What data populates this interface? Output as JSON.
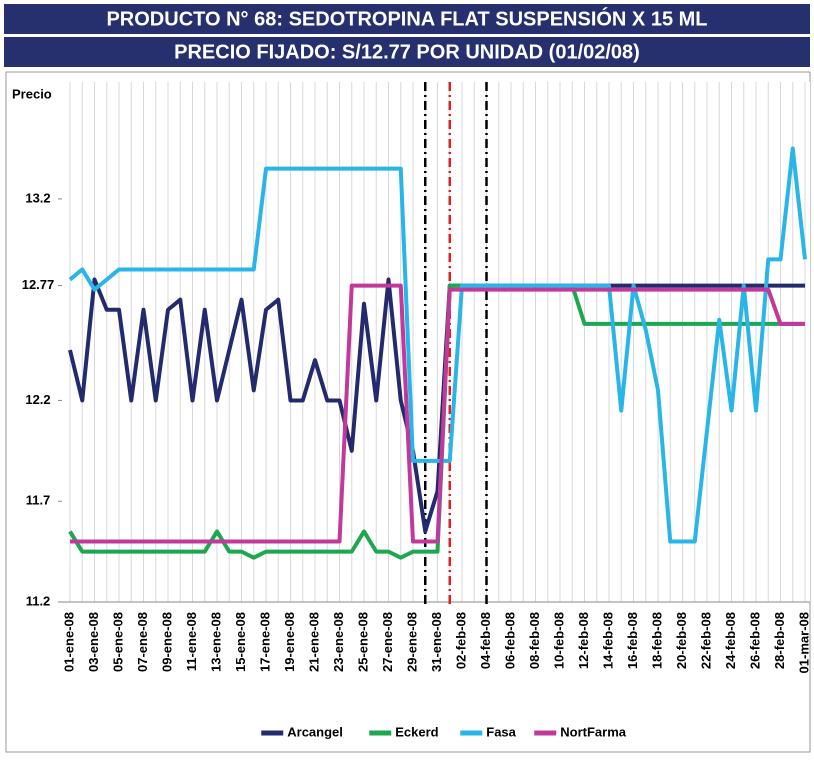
{
  "chart_data": {
    "type": "line",
    "title": "PRODUCTO N° 68: SEDOTROPINA FLAT SUSPENSIÓN X 15 ML",
    "subtitle": "PRECIO FIJADO: S/12.77 POR UNIDAD (01/02/08)",
    "y_label": "Precio",
    "categories": [
      "01-ene-08",
      null,
      "03-ene-08",
      null,
      "05-ene-08",
      null,
      "07-ene-08",
      null,
      "09-ene-08",
      null,
      "11-ene-08",
      null,
      "13-ene-08",
      null,
      "15-ene-08",
      null,
      "17-ene-08",
      null,
      "19-ene-08",
      null,
      "21-ene-08",
      null,
      "23-ene-08",
      null,
      "25-ene-08",
      null,
      "27-ene-08",
      null,
      "29-ene-08",
      null,
      "31-ene-08",
      null,
      "02-feb-08",
      null,
      "04-feb-08",
      null,
      "06-feb-08",
      null,
      "08-feb-08",
      null,
      "10-feb-08",
      null,
      "12-feb-08",
      null,
      "14-feb-08",
      null,
      "16-feb-08",
      null,
      "18-feb-08",
      null,
      "20-feb-08",
      null,
      "22-feb-08",
      null,
      "24-feb-08",
      null,
      "26-feb-08",
      null,
      "28-feb-08",
      null,
      "01-mar-08"
    ],
    "series": [
      {
        "name": "Arcangel",
        "color": "#232b6e",
        "values": [
          12.45,
          12.2,
          12.8,
          12.65,
          12.65,
          12.2,
          12.65,
          12.2,
          12.65,
          12.7,
          12.2,
          12.65,
          12.2,
          12.45,
          12.7,
          12.25,
          12.65,
          12.7,
          12.2,
          12.2,
          12.4,
          12.2,
          12.2,
          11.95,
          12.68,
          12.2,
          12.8,
          12.2,
          11.95,
          11.55,
          11.75,
          12.77,
          12.77,
          12.77,
          12.77,
          12.77,
          12.77,
          12.77,
          12.77,
          12.77,
          12.77,
          12.77,
          12.77,
          12.77,
          12.77,
          12.77,
          12.77,
          12.77,
          12.77,
          12.77,
          12.77,
          12.77,
          12.77,
          12.77,
          12.77,
          12.77,
          12.77,
          12.77,
          12.77,
          12.77,
          12.77
        ]
      },
      {
        "name": "Eckerd",
        "color": "#1fa650",
        "values": [
          11.55,
          11.45,
          11.45,
          11.45,
          11.45,
          11.45,
          11.45,
          11.45,
          11.45,
          11.45,
          11.45,
          11.45,
          11.55,
          11.45,
          11.45,
          11.42,
          11.45,
          11.45,
          11.45,
          11.45,
          11.45,
          11.45,
          11.45,
          11.45,
          11.55,
          11.45,
          11.45,
          11.42,
          11.45,
          11.45,
          11.45,
          12.77,
          12.77,
          12.77,
          12.77,
          12.77,
          12.77,
          12.77,
          12.77,
          12.77,
          12.77,
          12.77,
          12.58,
          12.58,
          12.58,
          12.58,
          12.58,
          12.58,
          12.58,
          12.58,
          12.58,
          12.58,
          12.58,
          12.58,
          12.58,
          12.58,
          12.58,
          12.58,
          12.58,
          12.58,
          12.58
        ]
      },
      {
        "name": "Fasa",
        "color": "#29b5e8",
        "values": [
          12.8,
          12.85,
          12.75,
          12.8,
          12.85,
          12.85,
          12.85,
          12.85,
          12.85,
          12.85,
          12.85,
          12.85,
          12.85,
          12.85,
          12.85,
          12.85,
          13.35,
          13.35,
          13.35,
          13.35,
          13.35,
          13.35,
          13.35,
          13.35,
          13.35,
          13.35,
          13.35,
          13.35,
          11.9,
          11.9,
          11.9,
          11.9,
          12.77,
          12.77,
          12.77,
          12.77,
          12.77,
          12.77,
          12.77,
          12.77,
          12.77,
          12.77,
          12.77,
          12.77,
          12.77,
          12.15,
          12.77,
          12.55,
          12.25,
          11.5,
          11.5,
          11.5,
          12.05,
          12.6,
          12.15,
          12.77,
          12.15,
          12.9,
          12.9,
          13.45,
          12.9
        ]
      },
      {
        "name": "NortFarma",
        "color": "#c0399b",
        "values": [
          11.5,
          11.5,
          11.5,
          11.5,
          11.5,
          11.5,
          11.5,
          11.5,
          11.5,
          11.5,
          11.5,
          11.5,
          11.5,
          11.5,
          11.5,
          11.5,
          11.5,
          11.5,
          11.5,
          11.5,
          11.5,
          11.5,
          11.5,
          12.77,
          12.77,
          12.77,
          12.77,
          12.77,
          11.5,
          11.5,
          11.5,
          12.75,
          12.75,
          12.75,
          12.75,
          12.75,
          12.75,
          12.75,
          12.75,
          12.75,
          12.75,
          12.75,
          12.75,
          12.75,
          12.75,
          12.75,
          12.75,
          12.75,
          12.75,
          12.75,
          12.75,
          12.75,
          12.75,
          12.75,
          12.75,
          12.75,
          12.75,
          12.75,
          12.58,
          12.58,
          12.58
        ]
      }
    ],
    "ylim": [
      11.2,
      13.78
    ],
    "yticks": [
      11.2,
      11.7,
      12.2,
      12.77,
      13.2
    ],
    "reference_lines": [
      {
        "x": 29,
        "color": "#000000"
      },
      {
        "x": 31,
        "color": "#e02020"
      },
      {
        "x": 34,
        "color": "#000000"
      }
    ],
    "grid": "x",
    "legend": "bottom"
  }
}
